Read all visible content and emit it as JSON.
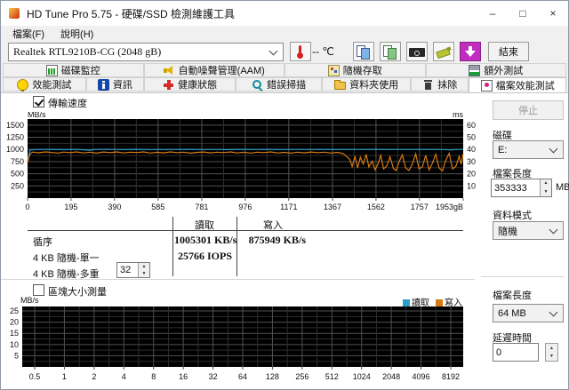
{
  "window": {
    "title": "HD Tune Pro 5.75 - 硬碟/SSD 檢測維護工具",
    "minimize": "–",
    "maximize": "□",
    "close": "×"
  },
  "menu": {
    "file": "檔案(F)",
    "help": "說明(H)"
  },
  "toolbar": {
    "device": "Realtek RTL9210B-CG (2048 gB)",
    "temperature": "-- ℃",
    "exit_label": "結束",
    "icons": [
      "thermometer-icon",
      "copy-icon",
      "copy-image-icon",
      "camera-icon",
      "usb-save-icon",
      "download-icon"
    ]
  },
  "tabs": {
    "row1": [
      {
        "label": "磁碟監控",
        "icon": "disk-monitor-icon"
      },
      {
        "label": "自動噪聲管理(AAM)",
        "icon": "speaker-icon"
      },
      {
        "label": "隨機存取",
        "icon": "random-access-icon"
      },
      {
        "label": "額外測試",
        "icon": "extra-tests-icon"
      }
    ],
    "row2": [
      {
        "label": "效能測試",
        "icon": "lightbulb-icon"
      },
      {
        "label": "資訊",
        "icon": "info-icon"
      },
      {
        "label": "健康狀態",
        "icon": "health-cross-icon"
      },
      {
        "label": "錯誤掃描",
        "icon": "magnifier-icon"
      },
      {
        "label": "資料夾使用",
        "icon": "folder-icon"
      },
      {
        "label": "抹除",
        "icon": "trash-icon"
      },
      {
        "label": "檔案效能測試",
        "icon": "file-benchmark-icon",
        "active": true
      }
    ]
  },
  "file_benchmark": {
    "transfer_checkbox_label": "傳輸速度",
    "transfer_checked": true,
    "block_checkbox_label": "區塊大小測量",
    "block_checked": false,
    "results": {
      "col_read": "讀取",
      "col_write": "寫入",
      "rows": [
        {
          "label": "循序",
          "read": "1005301 KB/s",
          "write": "875949 KB/s"
        },
        {
          "label": "4 KB 隨機-單一",
          "read": "25766 IOPS",
          "write": ""
        },
        {
          "label": "4 KB 隨機-多重",
          "queue_depth": "32",
          "read": "",
          "write": ""
        }
      ]
    }
  },
  "sidebar": {
    "stop_label": "停止",
    "disk_label": "磁碟",
    "disk_value": "E:",
    "file_length_label": "檔案長度",
    "file_length_value": "353333",
    "file_length_unit": "MB",
    "data_mode_label": "資料模式",
    "data_mode_value": "隨機",
    "block_file_length_label": "檔案長度",
    "block_file_length_value": "64 MB",
    "delay_label": "延遲時間",
    "delay_value": "0"
  },
  "colors": {
    "read_line": "#2b9fc9",
    "write_line": "#d97a12",
    "chart_bg": "#000000",
    "grid_major": "#515151",
    "grid_minor": "#2e2e2e",
    "download_button": "#bf2cbf"
  },
  "chart_data": [
    {
      "type": "line",
      "title": "傳輸速度",
      "ylabel_left": "MB/s",
      "ylabel_right": "ms",
      "xlim": [
        0,
        1953
      ],
      "ylim_left": [
        0,
        1625
      ],
      "ylim_right": [
        0,
        65
      ],
      "x_ticks": [
        0,
        195,
        390,
        585,
        781,
        976,
        1171,
        1367,
        1562,
        1757,
        1953
      ],
      "x_tick_labels": [
        "0",
        "195",
        "390",
        "585",
        "781",
        "976",
        "1171",
        "1367",
        "1562",
        "1757",
        "1953gB"
      ],
      "y_ticks_left": [
        250,
        500,
        750,
        1000,
        1250,
        1500
      ],
      "y_ticks_right": [
        10,
        20,
        30,
        40,
        50,
        60
      ],
      "grid": true,
      "series": [
        {
          "name": "讀取",
          "color": "#2b9fc9",
          "points": [
            [
              0,
              755
            ],
            [
              6,
              880
            ],
            [
              12,
              990
            ],
            [
              40,
              1000
            ],
            [
              100,
              1002
            ],
            [
              160,
              997
            ],
            [
              220,
              1001
            ],
            [
              280,
              985
            ],
            [
              300,
              1000
            ],
            [
              360,
              1003
            ],
            [
              420,
              999
            ],
            [
              480,
              1002
            ],
            [
              540,
              998
            ],
            [
              600,
              1001
            ],
            [
              660,
              1000
            ],
            [
              720,
              1003
            ],
            [
              780,
              999
            ],
            [
              840,
              1001
            ],
            [
              900,
              997
            ],
            [
              960,
              1002
            ],
            [
              1020,
              1000
            ],
            [
              1080,
              1003
            ],
            [
              1140,
              998
            ],
            [
              1200,
              1001
            ],
            [
              1260,
              1000
            ],
            [
              1320,
              1002
            ],
            [
              1380,
              999
            ],
            [
              1440,
              1001
            ],
            [
              1500,
              1000
            ],
            [
              1560,
              1002
            ],
            [
              1620,
              998
            ],
            [
              1680,
              1001
            ],
            [
              1740,
              1000
            ],
            [
              1800,
              1002
            ],
            [
              1860,
              999
            ],
            [
              1900,
              990
            ],
            [
              1920,
              1001
            ],
            [
              1953,
              1000
            ]
          ]
        },
        {
          "name": "寫入",
          "color": "#d97a12",
          "points": [
            [
              0,
              735
            ],
            [
              10,
              900
            ],
            [
              22,
              945
            ],
            [
              50,
              932
            ],
            [
              80,
              950
            ],
            [
              110,
              936
            ],
            [
              140,
              926
            ],
            [
              160,
              946
            ],
            [
              190,
              935
            ],
            [
              220,
              950
            ],
            [
              250,
              928
            ],
            [
              280,
              944
            ],
            [
              310,
              924
            ],
            [
              340,
              948
            ],
            [
              370,
              934
            ],
            [
              400,
              950
            ],
            [
              430,
              928
            ],
            [
              460,
              944
            ],
            [
              490,
              936
            ],
            [
              520,
              950
            ],
            [
              550,
              926
            ],
            [
              580,
              942
            ],
            [
              610,
              930
            ],
            [
              640,
              950
            ],
            [
              670,
              934
            ],
            [
              700,
              944
            ],
            [
              730,
              924
            ],
            [
              760,
              940
            ],
            [
              790,
              948
            ],
            [
              820,
              930
            ],
            [
              850,
              944
            ],
            [
              880,
              934
            ],
            [
              910,
              950
            ],
            [
              940,
              928
            ],
            [
              970,
              942
            ],
            [
              1000,
              926
            ],
            [
              1030,
              944
            ],
            [
              1060,
              934
            ],
            [
              1090,
              950
            ],
            [
              1120,
              928
            ],
            [
              1150,
              940
            ],
            [
              1180,
              924
            ],
            [
              1210,
              944
            ],
            [
              1240,
              930
            ],
            [
              1270,
              948
            ],
            [
              1300,
              934
            ],
            [
              1330,
              944
            ],
            [
              1360,
              926
            ],
            [
              1390,
              940
            ],
            [
              1415,
              915
            ],
            [
              1430,
              860
            ],
            [
              1445,
              790
            ],
            [
              1455,
              650
            ],
            [
              1468,
              860
            ],
            [
              1480,
              620
            ],
            [
              1492,
              840
            ],
            [
              1505,
              700
            ],
            [
              1518,
              900
            ],
            [
              1530,
              640
            ],
            [
              1545,
              760
            ],
            [
              1558,
              580
            ],
            [
              1570,
              690
            ],
            [
              1583,
              880
            ],
            [
              1596,
              600
            ],
            [
              1610,
              660
            ],
            [
              1625,
              850
            ],
            [
              1640,
              610
            ],
            [
              1652,
              565
            ],
            [
              1665,
              740
            ],
            [
              1680,
              890
            ],
            [
              1695,
              620
            ],
            [
              1710,
              570
            ],
            [
              1725,
              700
            ],
            [
              1740,
              910
            ],
            [
              1755,
              600
            ],
            [
              1770,
              640
            ],
            [
              1785,
              880
            ],
            [
              1800,
              580
            ],
            [
              1815,
              720
            ],
            [
              1830,
              900
            ],
            [
              1845,
              620
            ],
            [
              1860,
              560
            ],
            [
              1875,
              780
            ],
            [
              1890,
              920
            ],
            [
              1905,
              600
            ],
            [
              1920,
              650
            ],
            [
              1935,
              860
            ],
            [
              1944,
              700
            ],
            [
              1953,
              915
            ]
          ]
        }
      ]
    },
    {
      "type": "line",
      "title": "區塊大小測量",
      "ylabel": "MB/s",
      "ylim": [
        0,
        27
      ],
      "y_ticks": [
        5,
        10,
        15,
        20,
        25
      ],
      "x_tick_labels": [
        "0.5",
        "1",
        "2",
        "4",
        "8",
        "16",
        "32",
        "64",
        "128",
        "256",
        "512",
        "1024",
        "2048",
        "4096",
        "8192"
      ],
      "grid": true,
      "legend": [
        {
          "label": "讀取",
          "color": "#2b9fc9"
        },
        {
          "label": "寫入",
          "color": "#d97a12"
        }
      ],
      "series": []
    }
  ]
}
